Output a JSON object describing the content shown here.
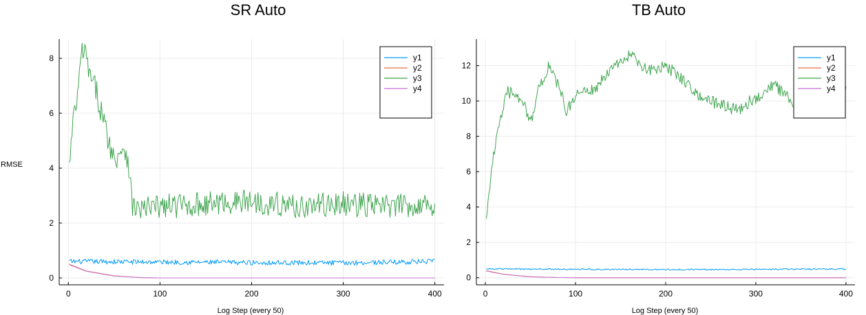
{
  "colors": {
    "y1": "#009AFA",
    "y2": "#E36F47",
    "y3": "#3EA44E",
    "y4": "#C371D2",
    "grid": "#ebebeb",
    "axis": "#000000"
  },
  "chart_data": [
    {
      "type": "line",
      "title": "SR Auto",
      "xlabel": "Log Step (every 50)",
      "ylabel": "RMSE",
      "xlim": [
        -10,
        410
      ],
      "ylim": [
        -0.25,
        8.7
      ],
      "xticks": [
        0,
        100,
        200,
        300,
        400
      ],
      "yticks": [
        0,
        2,
        4,
        6,
        8
      ],
      "grid": true,
      "legend_position": "top-right",
      "x_range": [
        1,
        400
      ],
      "series": [
        {
          "name": "y1",
          "color": "#009AFA",
          "base": 0.55,
          "noise": 0.09,
          "points": [
            [
              1,
              0.6
            ],
            [
              100,
              0.58
            ],
            [
              200,
              0.56
            ],
            [
              300,
              0.55
            ],
            [
              400,
              0.6
            ]
          ]
        },
        {
          "name": "y2",
          "color": "#E36F47",
          "base": 0.0,
          "noise": 0.0,
          "points": [
            [
              1,
              0.5
            ],
            [
              20,
              0.25
            ],
            [
              50,
              0.08
            ],
            [
              80,
              0.01
            ],
            [
              100,
              0.0
            ],
            [
              400,
              0.0
            ]
          ]
        },
        {
          "name": "y3",
          "color": "#3EA44E",
          "base": 0.0,
          "noise": 0.45,
          "points": [
            [
              1,
              4.0
            ],
            [
              5,
              5.6
            ],
            [
              10,
              6.6
            ],
            [
              15,
              8.3
            ],
            [
              20,
              8.0
            ],
            [
              25,
              7.1
            ],
            [
              30,
              6.9
            ],
            [
              40,
              5.5
            ],
            [
              50,
              4.3
            ],
            [
              60,
              4.8
            ],
            [
              65,
              4.4
            ],
            [
              70,
              2.6
            ],
            [
              80,
              2.5
            ],
            [
              100,
              2.6
            ],
            [
              150,
              2.7
            ],
            [
              200,
              2.8
            ],
            [
              250,
              2.6
            ],
            [
              300,
              2.7
            ],
            [
              350,
              2.6
            ],
            [
              400,
              2.7
            ]
          ]
        },
        {
          "name": "y4",
          "color": "#C371D2",
          "base": 0.0,
          "noise": 0.0,
          "points": [
            [
              1,
              0.48
            ],
            [
              20,
              0.24
            ],
            [
              50,
              0.07
            ],
            [
              80,
              0.01
            ],
            [
              100,
              0.0
            ],
            [
              400,
              0.0
            ]
          ]
        }
      ]
    },
    {
      "type": "line",
      "title": "TB Auto",
      "xlabel": "Log Step (every 50)",
      "ylabel": "",
      "xlim": [
        -10,
        410
      ],
      "ylim": [
        -0.4,
        13.5
      ],
      "xticks": [
        0,
        100,
        200,
        300,
        400
      ],
      "yticks": [
        0,
        2,
        4,
        6,
        8,
        10,
        12
      ],
      "grid": true,
      "legend_position": "top-right",
      "x_range": [
        1,
        400
      ],
      "series": [
        {
          "name": "y1",
          "color": "#009AFA",
          "base": 0.0,
          "noise": 0.04,
          "points": [
            [
              1,
              0.5
            ],
            [
              100,
              0.48
            ],
            [
              200,
              0.46
            ],
            [
              300,
              0.47
            ],
            [
              400,
              0.5
            ]
          ]
        },
        {
          "name": "y2",
          "color": "#E36F47",
          "base": 0.0,
          "noise": 0.0,
          "points": [
            [
              1,
              0.4
            ],
            [
              20,
              0.2
            ],
            [
              50,
              0.06
            ],
            [
              80,
              0.01
            ],
            [
              100,
              0.0
            ],
            [
              400,
              0.0
            ]
          ]
        },
        {
          "name": "y3",
          "color": "#3EA44E",
          "base": 0.0,
          "noise": 0.35,
          "points": [
            [
              1,
              3.6
            ],
            [
              10,
              7.2
            ],
            [
              15,
              8.8
            ],
            [
              25,
              10.5
            ],
            [
              40,
              10.2
            ],
            [
              50,
              8.8
            ],
            [
              60,
              10.8
            ],
            [
              70,
              11.9
            ],
            [
              80,
              11.0
            ],
            [
              90,
              9.4
            ],
            [
              100,
              10.4
            ],
            [
              120,
              10.6
            ],
            [
              140,
              11.8
            ],
            [
              160,
              12.6
            ],
            [
              180,
              11.7
            ],
            [
              200,
              12.0
            ],
            [
              220,
              11.2
            ],
            [
              240,
              10.2
            ],
            [
              260,
              9.8
            ],
            [
              280,
              9.5
            ],
            [
              300,
              10.2
            ],
            [
              320,
              10.9
            ],
            [
              340,
              10.0
            ],
            [
              350,
              9.2
            ],
            [
              360,
              10.5
            ],
            [
              380,
              10.8
            ],
            [
              400,
              10.7
            ]
          ]
        },
        {
          "name": "y4",
          "color": "#C371D2",
          "base": 0.0,
          "noise": 0.0,
          "points": [
            [
              1,
              0.38
            ],
            [
              20,
              0.19
            ],
            [
              50,
              0.05
            ],
            [
              80,
              0.01
            ],
            [
              100,
              0.0
            ],
            [
              400,
              0.0
            ]
          ]
        }
      ]
    }
  ]
}
